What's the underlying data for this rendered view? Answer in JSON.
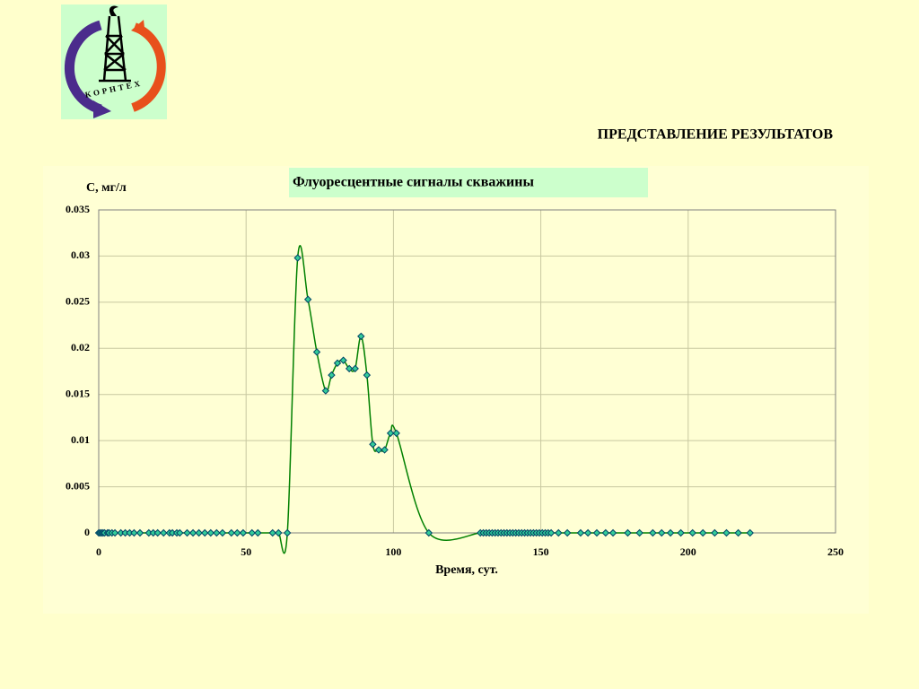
{
  "logo_text": "КОРНТЕХ",
  "heading": "ПРЕДСТАВЛЕНИЕ РЕЗУЛЬТАТОВ",
  "chart_data": {
    "type": "line",
    "title": "Флуоресцентные сигналы скважины",
    "y_label": "C, мг/л",
    "x_label": "Время, сут.",
    "color": "#008000",
    "marker_color": "#33cc99",
    "grid": true,
    "xlim": [
      0,
      250
    ],
    "xticks": [
      0,
      50,
      100,
      150,
      200,
      250
    ],
    "ylim": [
      0,
      0.035
    ],
    "yticks": [
      0,
      0.005,
      0.01,
      0.015,
      0.02,
      0.025,
      0.03,
      0.035
    ],
    "x": [
      0,
      0.5,
      1,
      1.5,
      2,
      3,
      3.5,
      4.5,
      5.5,
      7.5,
      9,
      10.5,
      12,
      14,
      17,
      18.5,
      20,
      22,
      24,
      25,
      26.5,
      27.5,
      30,
      32,
      34,
      36,
      38,
      40,
      42,
      45,
      47,
      49,
      52,
      54,
      59,
      61,
      64,
      67.5,
      71,
      74,
      77,
      79,
      81,
      83,
      85,
      87,
      89,
      91,
      93,
      95,
      97,
      99,
      101,
      112,
      129.5,
      130.5,
      131.5,
      132.5,
      133.5,
      134.5,
      135.5,
      136.5,
      137.5,
      138.5,
      139.5,
      140.5,
      141.5,
      142.5,
      143.5,
      144.5,
      145.5,
      146.5,
      147.5,
      148.5,
      149.5,
      150.5,
      151.5,
      152.5,
      153.5,
      156,
      159,
      163.5,
      166,
      169,
      172,
      174.5,
      179.5,
      183.5,
      188,
      191,
      194,
      197.5,
      201.5,
      205,
      209,
      213,
      217,
      221
    ],
    "values": [
      0,
      0,
      0,
      0,
      0,
      0,
      0,
      0,
      0,
      0,
      0,
      0,
      0,
      0,
      0,
      0,
      0,
      0,
      0,
      0,
      0,
      0,
      0,
      0,
      0,
      0,
      0,
      0,
      0,
      0,
      0,
      0,
      0,
      0,
      0,
      0,
      0,
      0.0298,
      0.0253,
      0.0196,
      0.0154,
      0.0171,
      0.0184,
      0.0187,
      0.0178,
      0.0178,
      0.0213,
      0.0171,
      0.0096,
      0.009,
      0.009,
      0.0108,
      0.0108,
      0,
      0,
      0,
      0,
      0,
      0,
      0,
      0,
      0,
      0,
      0,
      0,
      0,
      0,
      0,
      0,
      0,
      0,
      0,
      0,
      0,
      0,
      0,
      0,
      0,
      0,
      0,
      0,
      0,
      0,
      0,
      0,
      0,
      0,
      0,
      0,
      0,
      0,
      0,
      0,
      0,
      0,
      0,
      0,
      0
    ]
  }
}
